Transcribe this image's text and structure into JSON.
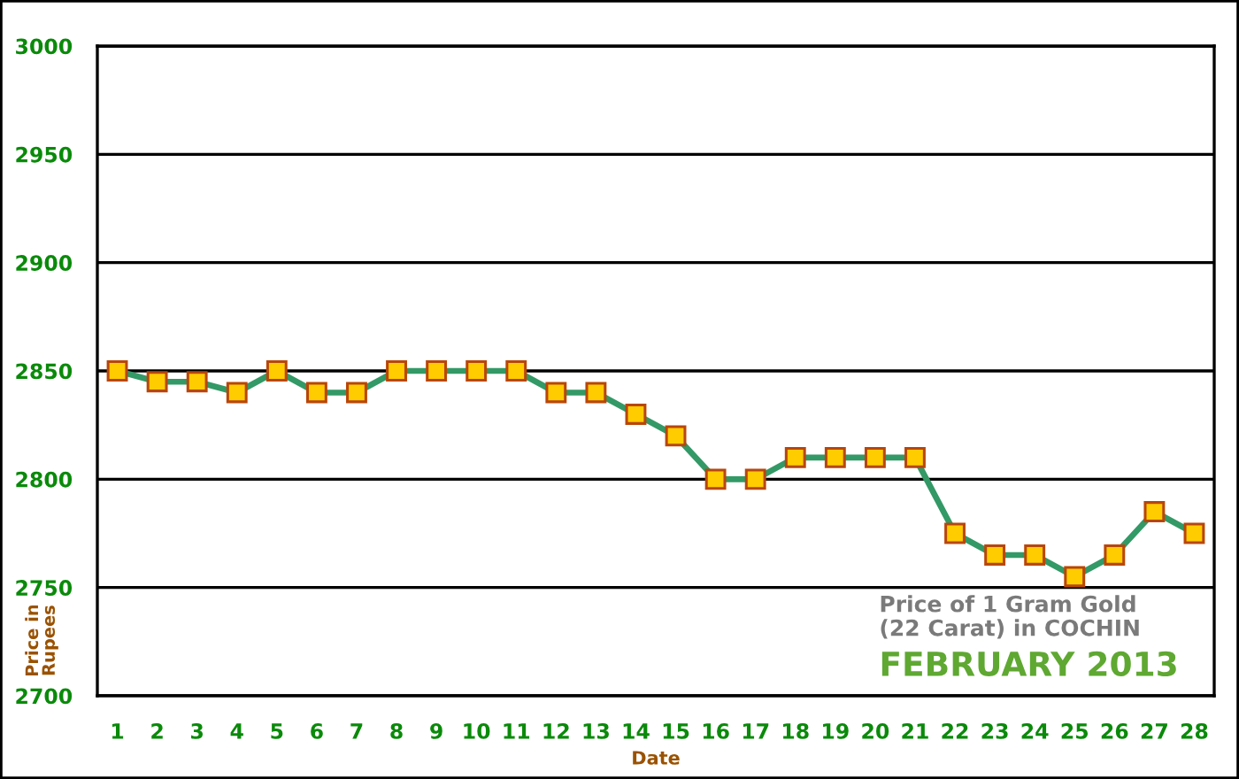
{
  "chart_data": {
    "type": "line",
    "title": "Price of 1 Gram Gold\n(22 Carat) in COCHIN",
    "subtitle": "FEBRUARY 2013",
    "xlabel": "Date",
    "ylabel": "Price in\nRupees",
    "categories": [
      "1",
      "2",
      "3",
      "4",
      "5",
      "6",
      "7",
      "8",
      "9",
      "10",
      "11",
      "12",
      "13",
      "14",
      "15",
      "16",
      "17",
      "18",
      "19",
      "20",
      "21",
      "22",
      "23",
      "24",
      "25",
      "26",
      "27",
      "28"
    ],
    "series": [
      {
        "color": "#339966",
        "values": [
          2850,
          2845,
          2845,
          2840,
          2850,
          2840,
          2840,
          2850,
          2850,
          2850,
          2850,
          2840,
          2840,
          2830,
          2820,
          2800,
          2800,
          2810,
          2810,
          2810,
          2810,
          2775,
          2765,
          2765,
          2755,
          2765,
          2785,
          2775
        ]
      }
    ],
    "ylim": [
      2700,
      3000
    ],
    "yticks": [
      2700,
      2750,
      2800,
      2850,
      2900,
      2950,
      3000
    ],
    "grid": "y",
    "marker": "square",
    "line_style": "solid"
  }
}
